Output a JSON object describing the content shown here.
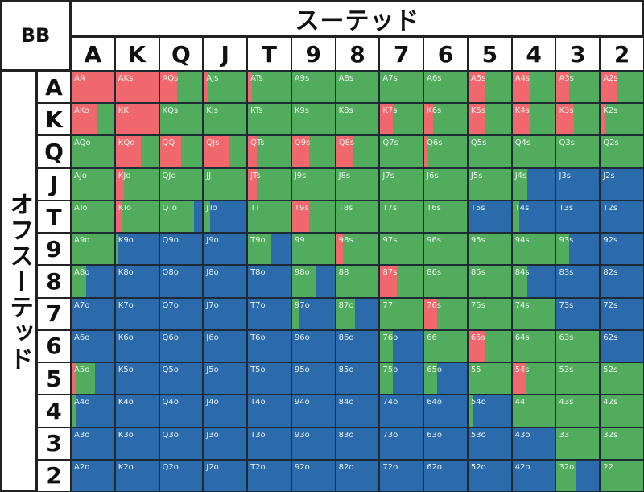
{
  "header": {
    "corner": "BB",
    "suited_title": "スーテッド",
    "offsuit_title": "オフスーテッド"
  },
  "ranks": [
    "A",
    "K",
    "Q",
    "J",
    "T",
    "9",
    "8",
    "7",
    "6",
    "5",
    "4",
    "3",
    "2"
  ],
  "chart_data": {
    "type": "heatmap",
    "title": "",
    "actions": [
      {
        "key": "r",
        "color": "#f0676d"
      },
      {
        "key": "g",
        "color": "#52ac5e"
      },
      {
        "key": "b",
        "color": "#2b6aab"
      }
    ],
    "cells": [
      [
        {
          "l": "AA",
          "r": 1,
          "g": 0,
          "b": 0
        },
        {
          "l": "AKs",
          "r": 1,
          "g": 0,
          "b": 0
        },
        {
          "l": "AQs",
          "r": 0.4,
          "g": 0.6,
          "b": 0
        },
        {
          "l": "AJs",
          "r": 0.1,
          "g": 0.9,
          "b": 0
        },
        {
          "l": "ATs",
          "r": 0.1,
          "g": 0.9,
          "b": 0
        },
        {
          "l": "A9s",
          "r": 0,
          "g": 1,
          "b": 0
        },
        {
          "l": "A8s",
          "r": 0,
          "g": 1,
          "b": 0
        },
        {
          "l": "A7s",
          "r": 0,
          "g": 1,
          "b": 0
        },
        {
          "l": "A6s",
          "r": 0,
          "g": 1,
          "b": 0
        },
        {
          "l": "A5s",
          "r": 0.4,
          "g": 0.6,
          "b": 0
        },
        {
          "l": "A4s",
          "r": 0.4,
          "g": 0.6,
          "b": 0
        },
        {
          "l": "A3s",
          "r": 0.3,
          "g": 0.7,
          "b": 0
        },
        {
          "l": "A2s",
          "r": 0.4,
          "g": 0.6,
          "b": 0
        }
      ],
      [
        {
          "l": "AKo",
          "r": 0.6,
          "g": 0.4,
          "b": 0
        },
        {
          "l": "KK",
          "r": 1,
          "g": 0,
          "b": 0
        },
        {
          "l": "KQs",
          "r": 0,
          "g": 1,
          "b": 0
        },
        {
          "l": "KJs",
          "r": 0,
          "g": 1,
          "b": 0
        },
        {
          "l": "KTs",
          "r": 0,
          "g": 1,
          "b": 0
        },
        {
          "l": "K9s",
          "r": 0,
          "g": 1,
          "b": 0
        },
        {
          "l": "K8s",
          "r": 0,
          "g": 1,
          "b": 0
        },
        {
          "l": "K7s",
          "r": 0.3,
          "g": 0.7,
          "b": 0
        },
        {
          "l": "K6s",
          "r": 0.2,
          "g": 0.8,
          "b": 0
        },
        {
          "l": "K5s",
          "r": 0.4,
          "g": 0.6,
          "b": 0
        },
        {
          "l": "K4s",
          "r": 0.4,
          "g": 0.6,
          "b": 0
        },
        {
          "l": "K3s",
          "r": 0.4,
          "g": 0.6,
          "b": 0
        },
        {
          "l": "K2s",
          "r": 0.1,
          "g": 0.9,
          "b": 0
        }
      ],
      [
        {
          "l": "AQo",
          "r": 0,
          "g": 1,
          "b": 0
        },
        {
          "l": "KQo",
          "r": 0.6,
          "g": 0.4,
          "b": 0
        },
        {
          "l": "QQ",
          "r": 0.5,
          "g": 0.5,
          "b": 0
        },
        {
          "l": "QJs",
          "r": 0.6,
          "g": 0.4,
          "b": 0
        },
        {
          "l": "QTs",
          "r": 0.2,
          "g": 0.8,
          "b": 0
        },
        {
          "l": "Q9s",
          "r": 0.4,
          "g": 0.6,
          "b": 0
        },
        {
          "l": "Q8s",
          "r": 0.4,
          "g": 0.6,
          "b": 0
        },
        {
          "l": "Q7s",
          "r": 0,
          "g": 1,
          "b": 0
        },
        {
          "l": "Q6s",
          "r": 0.1,
          "g": 0.9,
          "b": 0
        },
        {
          "l": "Q5s",
          "r": 0,
          "g": 1,
          "b": 0
        },
        {
          "l": "Q4s",
          "r": 0,
          "g": 1,
          "b": 0
        },
        {
          "l": "Q3s",
          "r": 0,
          "g": 1,
          "b": 0
        },
        {
          "l": "Q2s",
          "r": 0,
          "g": 1,
          "b": 0
        }
      ],
      [
        {
          "l": "AJo",
          "r": 0,
          "g": 1,
          "b": 0
        },
        {
          "l": "KJo",
          "r": 0.2,
          "g": 0.8,
          "b": 0
        },
        {
          "l": "QJo",
          "r": 0,
          "g": 1,
          "b": 0
        },
        {
          "l": "JJ",
          "r": 0,
          "g": 1,
          "b": 0
        },
        {
          "l": "JTs",
          "r": 0.2,
          "g": 0.8,
          "b": 0
        },
        {
          "l": "J9s",
          "r": 0,
          "g": 1,
          "b": 0
        },
        {
          "l": "J8s",
          "r": 0,
          "g": 1,
          "b": 0
        },
        {
          "l": "J7s",
          "r": 0,
          "g": 1,
          "b": 0
        },
        {
          "l": "J6s",
          "r": 0,
          "g": 1,
          "b": 0
        },
        {
          "l": "J5s",
          "r": 0,
          "g": 1,
          "b": 0
        },
        {
          "l": "J4s",
          "r": 0,
          "g": 0.35,
          "b": 0.65
        },
        {
          "l": "J3s",
          "r": 0,
          "g": 0,
          "b": 1
        },
        {
          "l": "J2s",
          "r": 0,
          "g": 0,
          "b": 1
        }
      ],
      [
        {
          "l": "ATo",
          "r": 0,
          "g": 1,
          "b": 0
        },
        {
          "l": "KTo",
          "r": 0.15,
          "g": 0.85,
          "b": 0
        },
        {
          "l": "QTo",
          "r": 0,
          "g": 0.8,
          "b": 0.2
        },
        {
          "l": "JTo",
          "r": 0,
          "g": 0.15,
          "b": 0.85
        },
        {
          "l": "TT",
          "r": 0,
          "g": 1,
          "b": 0
        },
        {
          "l": "T9s",
          "r": 0.4,
          "g": 0.6,
          "b": 0
        },
        {
          "l": "T8s",
          "r": 0,
          "g": 1,
          "b": 0
        },
        {
          "l": "T7s",
          "r": 0,
          "g": 1,
          "b": 0
        },
        {
          "l": "T6s",
          "r": 0,
          "g": 1,
          "b": 0
        },
        {
          "l": "T5s",
          "r": 0,
          "g": 0,
          "b": 1
        },
        {
          "l": "T4s",
          "r": 0,
          "g": 0.15,
          "b": 0.85
        },
        {
          "l": "T3s",
          "r": 0,
          "g": 0,
          "b": 1
        },
        {
          "l": "T2s",
          "r": 0,
          "g": 0,
          "b": 1
        }
      ],
      [
        {
          "l": "A9o",
          "r": 0,
          "g": 1,
          "b": 0
        },
        {
          "l": "K9o",
          "r": 0,
          "g": 0.05,
          "b": 0.95
        },
        {
          "l": "Q9o",
          "r": 0,
          "g": 0,
          "b": 1
        },
        {
          "l": "J9o",
          "r": 0,
          "g": 0,
          "b": 1
        },
        {
          "l": "T9o",
          "r": 0,
          "g": 0.55,
          "b": 0.45
        },
        {
          "l": "99",
          "r": 0,
          "g": 1,
          "b": 0
        },
        {
          "l": "98s",
          "r": 0.15,
          "g": 0.85,
          "b": 0
        },
        {
          "l": "97s",
          "r": 0,
          "g": 1,
          "b": 0
        },
        {
          "l": "96s",
          "r": 0,
          "g": 1,
          "b": 0
        },
        {
          "l": "95s",
          "r": 0,
          "g": 1,
          "b": 0
        },
        {
          "l": "94s",
          "r": 0,
          "g": 1,
          "b": 0
        },
        {
          "l": "93s",
          "r": 0,
          "g": 0.3,
          "b": 0.7
        },
        {
          "l": "92s",
          "r": 0,
          "g": 0,
          "b": 1
        }
      ],
      [
        {
          "l": "A8o",
          "r": 0,
          "g": 0.35,
          "b": 0.65
        },
        {
          "l": "K8o",
          "r": 0,
          "g": 0,
          "b": 1
        },
        {
          "l": "Q8o",
          "r": 0,
          "g": 0,
          "b": 1
        },
        {
          "l": "J8o",
          "r": 0,
          "g": 0,
          "b": 1
        },
        {
          "l": "T8o",
          "r": 0,
          "g": 0,
          "b": 1
        },
        {
          "l": "98o",
          "r": 0,
          "g": 0.55,
          "b": 0.45
        },
        {
          "l": "88",
          "r": 0,
          "g": 1,
          "b": 0
        },
        {
          "l": "87s",
          "r": 0.4,
          "g": 0.6,
          "b": 0
        },
        {
          "l": "86s",
          "r": 0,
          "g": 1,
          "b": 0
        },
        {
          "l": "85s",
          "r": 0,
          "g": 1,
          "b": 0
        },
        {
          "l": "84s",
          "r": 0,
          "g": 0.35,
          "b": 0.65
        },
        {
          "l": "83s",
          "r": 0,
          "g": 0,
          "b": 1
        },
        {
          "l": "82s",
          "r": 0,
          "g": 0,
          "b": 1
        }
      ],
      [
        {
          "l": "A7o",
          "r": 0,
          "g": 0,
          "b": 1
        },
        {
          "l": "K7o",
          "r": 0,
          "g": 0,
          "b": 1
        },
        {
          "l": "Q7o",
          "r": 0,
          "g": 0,
          "b": 1
        },
        {
          "l": "J7o",
          "r": 0,
          "g": 0,
          "b": 1
        },
        {
          "l": "T7o",
          "r": 0,
          "g": 0,
          "b": 1
        },
        {
          "l": "97o",
          "r": 0,
          "g": 0.15,
          "b": 0.85
        },
        {
          "l": "87o",
          "r": 0,
          "g": 0.45,
          "b": 0.55
        },
        {
          "l": "77",
          "r": 0,
          "g": 1,
          "b": 0
        },
        {
          "l": "76s",
          "r": 0.3,
          "g": 0.7,
          "b": 0
        },
        {
          "l": "75s",
          "r": 0,
          "g": 1,
          "b": 0
        },
        {
          "l": "74s",
          "r": 0,
          "g": 1,
          "b": 0
        },
        {
          "l": "73s",
          "r": 0,
          "g": 0,
          "b": 1
        },
        {
          "l": "72s",
          "r": 0,
          "g": 0,
          "b": 1
        }
      ],
      [
        {
          "l": "A6o",
          "r": 0,
          "g": 0,
          "b": 1
        },
        {
          "l": "K6o",
          "r": 0,
          "g": 0,
          "b": 1
        },
        {
          "l": "Q6o",
          "r": 0,
          "g": 0,
          "b": 1
        },
        {
          "l": "J6o",
          "r": 0,
          "g": 0,
          "b": 1
        },
        {
          "l": "T6o",
          "r": 0,
          "g": 0,
          "b": 1
        },
        {
          "l": "96o",
          "r": 0,
          "g": 0,
          "b": 1
        },
        {
          "l": "86o",
          "r": 0,
          "g": 0,
          "b": 1
        },
        {
          "l": "76o",
          "r": 0,
          "g": 0.3,
          "b": 0.7
        },
        {
          "l": "66",
          "r": 0,
          "g": 1,
          "b": 0
        },
        {
          "l": "65s",
          "r": 0.4,
          "g": 0.6,
          "b": 0
        },
        {
          "l": "64s",
          "r": 0,
          "g": 1,
          "b": 0
        },
        {
          "l": "63s",
          "r": 0,
          "g": 1,
          "b": 0
        },
        {
          "l": "62s",
          "r": 0,
          "g": 0,
          "b": 1
        }
      ],
      [
        {
          "l": "A5o",
          "r": 0.1,
          "g": 0.45,
          "b": 0.45
        },
        {
          "l": "K5o",
          "r": 0,
          "g": 0,
          "b": 1
        },
        {
          "l": "Q5o",
          "r": 0,
          "g": 0,
          "b": 1
        },
        {
          "l": "J5o",
          "r": 0,
          "g": 0,
          "b": 1
        },
        {
          "l": "T5o",
          "r": 0,
          "g": 0,
          "b": 1
        },
        {
          "l": "95o",
          "r": 0,
          "g": 0,
          "b": 1
        },
        {
          "l": "85o",
          "r": 0,
          "g": 0,
          "b": 1
        },
        {
          "l": "75o",
          "r": 0,
          "g": 0.3,
          "b": 0.7
        },
        {
          "l": "65o",
          "r": 0,
          "g": 0.3,
          "b": 0.7
        },
        {
          "l": "55",
          "r": 0,
          "g": 1,
          "b": 0
        },
        {
          "l": "54s",
          "r": 0.3,
          "g": 0.7,
          "b": 0
        },
        {
          "l": "53s",
          "r": 0,
          "g": 1,
          "b": 0
        },
        {
          "l": "52s",
          "r": 0,
          "g": 1,
          "b": 0
        }
      ],
      [
        {
          "l": "A4o",
          "r": 0,
          "g": 0.1,
          "b": 0.9
        },
        {
          "l": "K4o",
          "r": 0,
          "g": 0,
          "b": 1
        },
        {
          "l": "Q4o",
          "r": 0,
          "g": 0,
          "b": 1
        },
        {
          "l": "J4o",
          "r": 0,
          "g": 0,
          "b": 1
        },
        {
          "l": "T4o",
          "r": 0,
          "g": 0,
          "b": 1
        },
        {
          "l": "94o",
          "r": 0,
          "g": 0,
          "b": 1
        },
        {
          "l": "84o",
          "r": 0,
          "g": 0,
          "b": 1
        },
        {
          "l": "74o",
          "r": 0,
          "g": 0,
          "b": 1
        },
        {
          "l": "64o",
          "r": 0,
          "g": 0,
          "b": 1
        },
        {
          "l": "54o",
          "r": 0,
          "g": 0.1,
          "b": 0.9
        },
        {
          "l": "44",
          "r": 0,
          "g": 1,
          "b": 0
        },
        {
          "l": "43s",
          "r": 0,
          "g": 1,
          "b": 0
        },
        {
          "l": "42s",
          "r": 0,
          "g": 1,
          "b": 0
        }
      ],
      [
        {
          "l": "A3o",
          "r": 0,
          "g": 0,
          "b": 1
        },
        {
          "l": "K3o",
          "r": 0,
          "g": 0,
          "b": 1
        },
        {
          "l": "Q3o",
          "r": 0,
          "g": 0,
          "b": 1
        },
        {
          "l": "J3o",
          "r": 0,
          "g": 0,
          "b": 1
        },
        {
          "l": "T3o",
          "r": 0,
          "g": 0,
          "b": 1
        },
        {
          "l": "93o",
          "r": 0,
          "g": 0,
          "b": 1
        },
        {
          "l": "83o",
          "r": 0,
          "g": 0,
          "b": 1
        },
        {
          "l": "73o",
          "r": 0,
          "g": 0,
          "b": 1
        },
        {
          "l": "63o",
          "r": 0,
          "g": 0,
          "b": 1
        },
        {
          "l": "53o",
          "r": 0,
          "g": 0,
          "b": 1
        },
        {
          "l": "43o",
          "r": 0,
          "g": 0,
          "b": 1
        },
        {
          "l": "33",
          "r": 0,
          "g": 1,
          "b": 0
        },
        {
          "l": "32s",
          "r": 0,
          "g": 1,
          "b": 0
        }
      ],
      [
        {
          "l": "A2o",
          "r": 0,
          "g": 0,
          "b": 1
        },
        {
          "l": "K2o",
          "r": 0,
          "g": 0,
          "b": 1
        },
        {
          "l": "Q2o",
          "r": 0,
          "g": 0,
          "b": 1
        },
        {
          "l": "J2o",
          "r": 0,
          "g": 0,
          "b": 1
        },
        {
          "l": "T2o",
          "r": 0,
          "g": 0,
          "b": 1
        },
        {
          "l": "92o",
          "r": 0,
          "g": 0,
          "b": 1
        },
        {
          "l": "82o",
          "r": 0,
          "g": 0,
          "b": 1
        },
        {
          "l": "72o",
          "r": 0,
          "g": 0,
          "b": 1
        },
        {
          "l": "62o",
          "r": 0,
          "g": 0,
          "b": 1
        },
        {
          "l": "52o",
          "r": 0,
          "g": 0,
          "b": 1
        },
        {
          "l": "42o",
          "r": 0,
          "g": 0,
          "b": 1
        },
        {
          "l": "32o",
          "r": 0,
          "g": 0.45,
          "b": 0.55
        },
        {
          "l": "22",
          "r": 0,
          "g": 1,
          "b": 0
        }
      ]
    ]
  }
}
